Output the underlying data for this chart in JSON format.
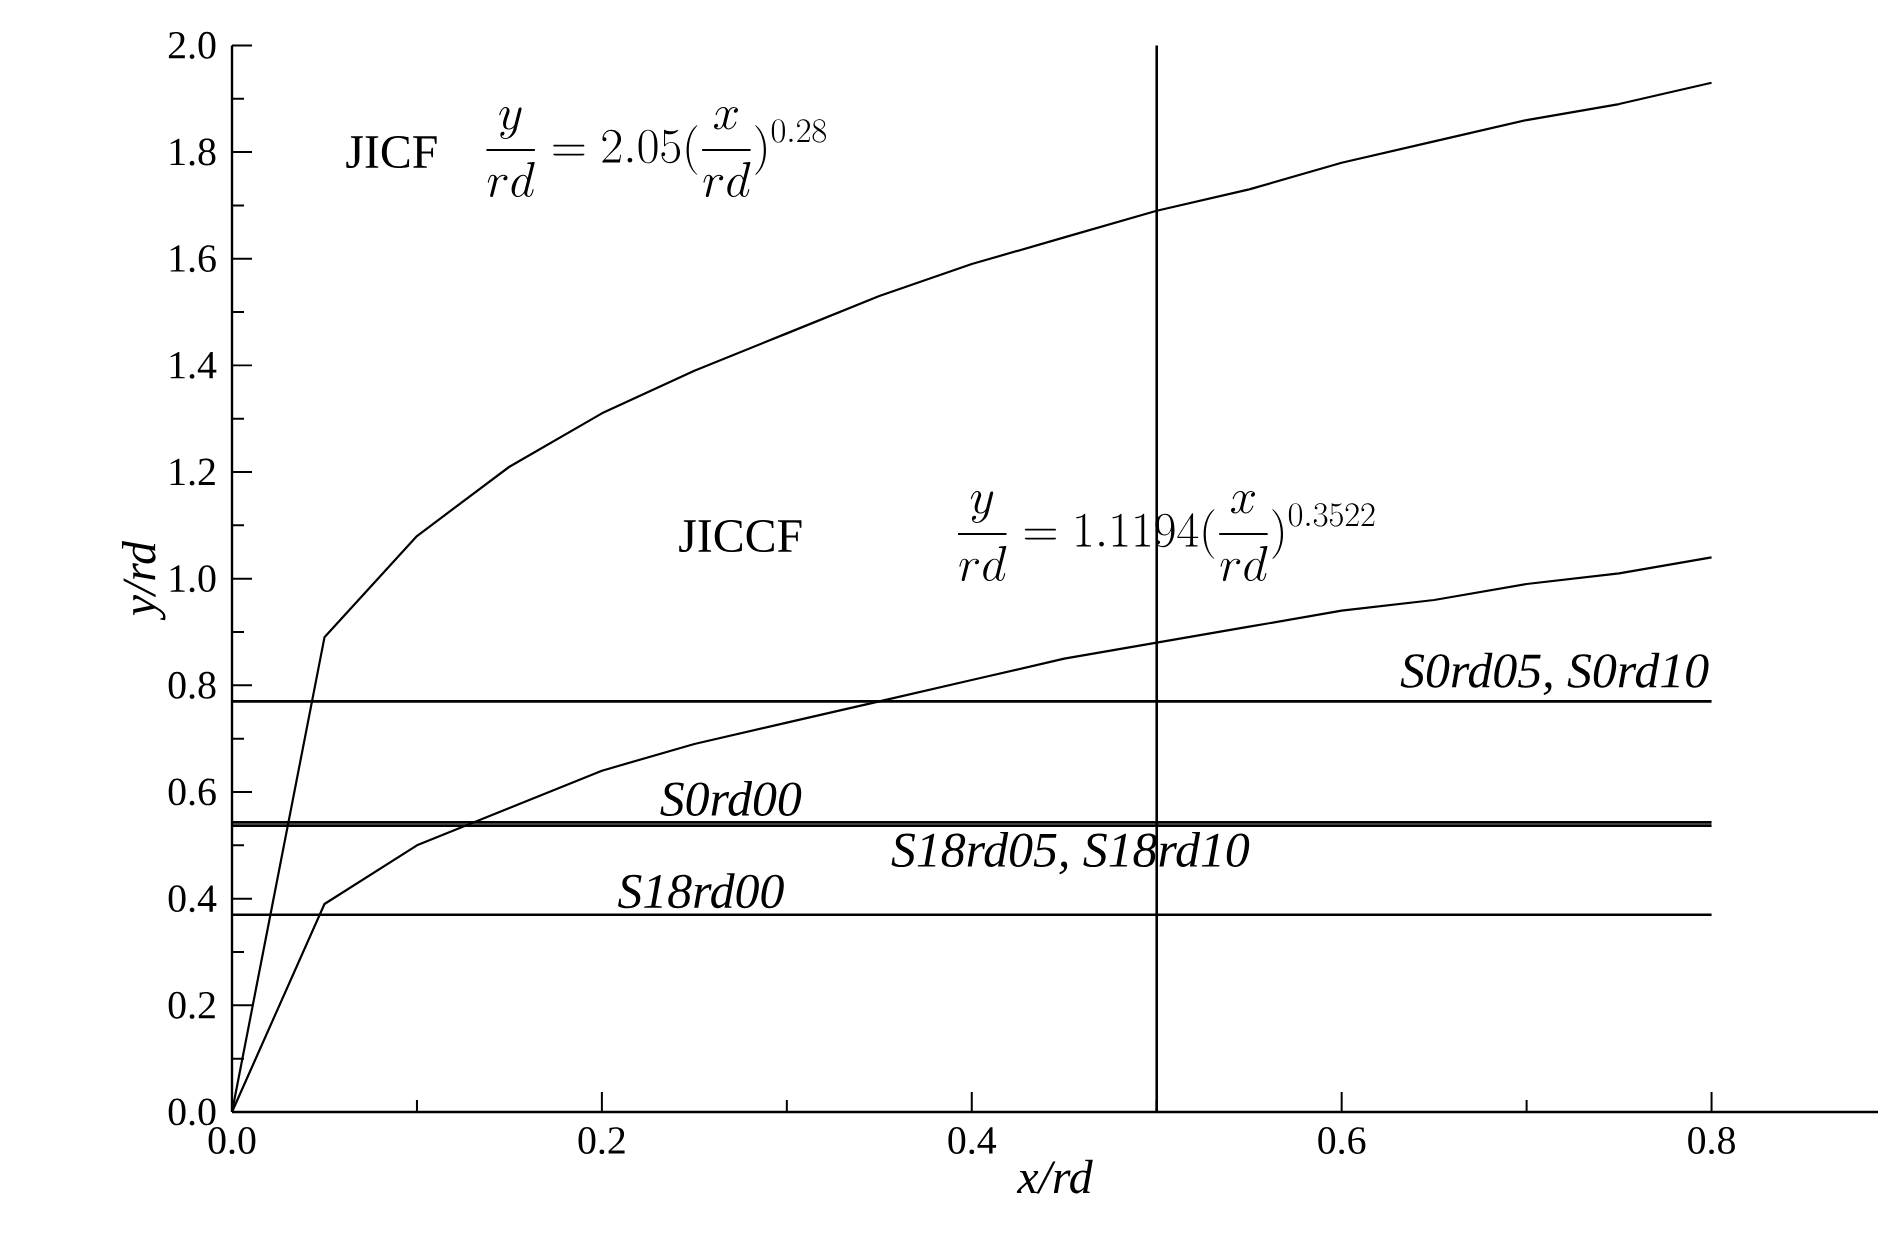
{
  "chart_data": {
    "type": "line",
    "xlabel": "x/rd",
    "ylabel": "y/rd",
    "x": [
      0,
      0.05,
      0.1,
      0.15,
      0.2,
      0.25,
      0.3,
      0.35,
      0.4,
      0.45,
      0.5,
      0.55,
      0.6,
      0.65,
      0.7,
      0.75,
      0.8
    ],
    "series": [
      {
        "color": "#000000",
        "values": [
          0,
          0.89,
          1.08,
          1.21,
          1.31,
          1.39,
          1.46,
          1.53,
          1.59,
          1.64,
          1.69,
          1.73,
          1.78,
          1.82,
          1.86,
          1.89,
          1.93
        ]
      },
      {
        "color": "#000000",
        "values": [
          0,
          0.39,
          0.5,
          0.57,
          0.64,
          0.69,
          0.73,
          0.77,
          0.81,
          0.85,
          0.88,
          0.91,
          0.94,
          0.96,
          0.99,
          1.01,
          1.04
        ]
      }
    ],
    "xlim": [
      0,
      0.89
    ],
    "ylim": [
      0,
      2.0
    ],
    "xticks": [
      {
        "value": 0,
        "label": "0.0"
      },
      {
        "value": 0.2,
        "label": "0.2"
      },
      {
        "value": 0.4,
        "label": "0.4"
      },
      {
        "value": 0.6,
        "label": "0.6"
      },
      {
        "value": 0.8,
        "label": "0.8"
      }
    ],
    "yticks": [
      {
        "value": 0,
        "label": "0.0"
      },
      {
        "value": 0.2,
        "label": "0.2"
      },
      {
        "value": 0.4,
        "label": "0.4"
      },
      {
        "value": 0.6,
        "label": "0.6"
      },
      {
        "value": 0.8,
        "label": "0.8"
      },
      {
        "value": 1.0,
        "label": "1.0"
      },
      {
        "value": 1.2,
        "label": "1.2"
      },
      {
        "value": 1.4,
        "label": "1.4"
      },
      {
        "value": 1.6,
        "label": "1.6"
      },
      {
        "value": 1.8,
        "label": "1.8"
      },
      {
        "value": 2.0,
        "label": "2.0"
      }
    ],
    "ref_lines": [
      {
        "axis": "y",
        "value": 0.77,
        "label": "S0rd05, S0rd10"
      },
      {
        "axis": "y",
        "value": 0.543,
        "label": "S0rd00"
      },
      {
        "axis": "y",
        "value": 0.537,
        "label": "S18rd05, S18rd10"
      },
      {
        "axis": "y",
        "value": 0.37,
        "label": "S18rd00"
      },
      {
        "axis": "x",
        "value": 0.5
      }
    ],
    "annotations": [
      "JICF",
      "\\frac{y}{rd} = 2.05(\\frac{x}{rd})^{0.28}",
      "JICCF",
      "\\frac{y}{rd} = 1.1194(\\frac{x}{rd})^{0.3522}"
    ],
    "grid": false,
    "marker": "none",
    "line_style": "solid"
  }
}
